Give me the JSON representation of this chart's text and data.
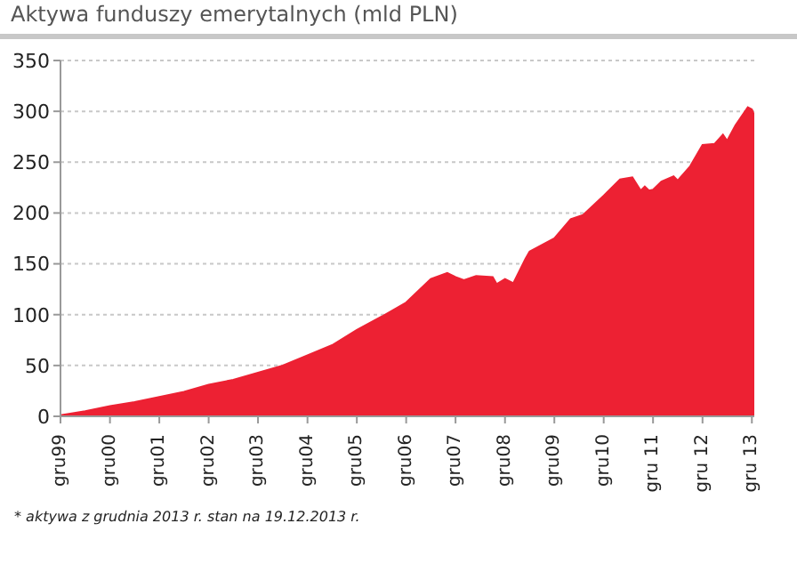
{
  "chart_data": {
    "type": "area",
    "title": "Aktywa funduszy emerytalnych (mld PLN)",
    "x": [
      "1999-12",
      "2000-06",
      "2000-12",
      "2001-06",
      "2001-12",
      "2002-06",
      "2002-12",
      "2003-06",
      "2003-12",
      "2004-06",
      "2004-12",
      "2005-06",
      "2005-12",
      "2006-06",
      "2006-12",
      "2007-06",
      "2007-10",
      "2007-12",
      "2008-02",
      "2008-05",
      "2008-09",
      "2008-10",
      "2008-12",
      "2009-02",
      "2009-05",
      "2009-06",
      "2009-12",
      "2010-04",
      "2010-07",
      "2010-12",
      "2011-04",
      "2011-07",
      "2011-09",
      "2011-10",
      "2011-11",
      "2011-12",
      "2012-02",
      "2012-05",
      "2012-06",
      "2012-09",
      "2012-12",
      "2013-03",
      "2013-05",
      "2013-06",
      "2013-08",
      "2013-11",
      "2013-12",
      "2013-12-19"
    ],
    "series": [
      {
        "color": "#ed2133",
        "values": [
          1,
          5,
          10,
          14,
          19,
          24,
          31,
          36,
          43,
          50,
          60,
          70,
          85,
          98,
          112,
          135,
          141,
          137,
          134,
          138,
          137,
          130,
          135,
          131,
          155,
          162,
          175,
          194,
          198,
          217,
          233,
          235,
          222,
          226,
          222,
          223,
          231,
          236,
          232,
          246,
          267,
          268,
          277,
          271,
          286,
          304,
          302,
          296
        ]
      }
    ],
    "xlim": [
      "1999-12",
      "2013-12-19"
    ],
    "xticks": [
      {
        "value": "1999-12",
        "label": "gru99"
      },
      {
        "value": "2000-12",
        "label": "gru00"
      },
      {
        "value": "2001-12",
        "label": "gru01"
      },
      {
        "value": "2002-12",
        "label": "gru02"
      },
      {
        "value": "2003-12",
        "label": "gru03"
      },
      {
        "value": "2004-12",
        "label": "gru04"
      },
      {
        "value": "2005-12",
        "label": "gru05"
      },
      {
        "value": "2006-12",
        "label": "gru06"
      },
      {
        "value": "2007-12",
        "label": "gru07"
      },
      {
        "value": "2008-12",
        "label": "gru08"
      },
      {
        "value": "2009-12",
        "label": "gru09"
      },
      {
        "value": "2010-12",
        "label": "gru10"
      },
      {
        "value": "2011-12",
        "label": "gru 11"
      },
      {
        "value": "2012-12",
        "label": "gru 12"
      },
      {
        "value": "2013-12",
        "label": "gru 13"
      }
    ],
    "ylim": [
      0,
      350
    ],
    "yticks": [
      0,
      50,
      100,
      150,
      200,
      250,
      300,
      350
    ],
    "grid": "y",
    "annotations": [
      "* aktywa z grudnia 2013 r. stan na 19.12.2013 r."
    ]
  }
}
